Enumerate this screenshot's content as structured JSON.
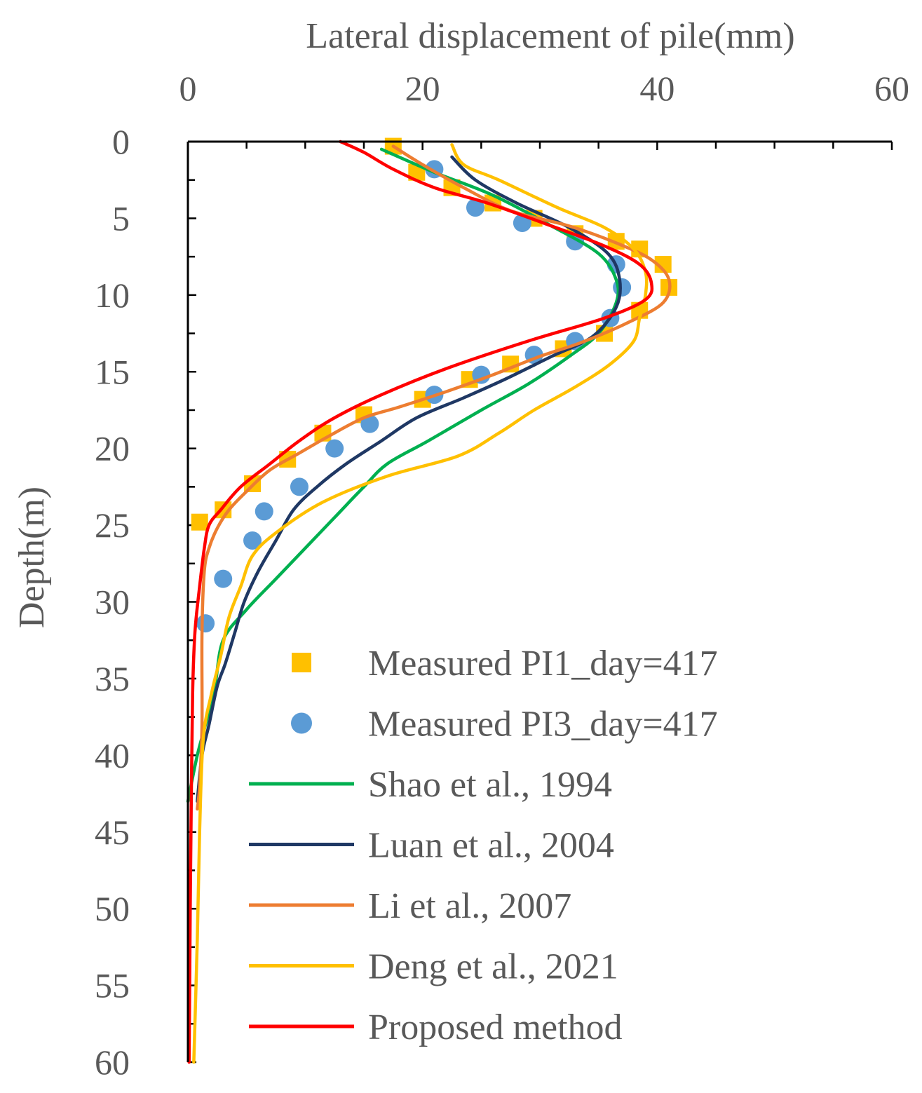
{
  "chart_data": {
    "type": "line",
    "xlabel": "Lateral displacement of pile(mm)",
    "ylabel": "Depth(m)",
    "xlim": [
      0,
      60
    ],
    "ylim": [
      0,
      60
    ],
    "x_axis_position": "top",
    "y_axis_inverted": true,
    "x_ticks": [
      0,
      20,
      40,
      60
    ],
    "y_ticks": [
      0,
      5,
      10,
      15,
      20,
      25,
      30,
      35,
      40,
      45,
      50,
      55,
      60
    ],
    "legend_position": "bottom-right",
    "grid": false,
    "series": [
      {
        "name": "Measured PI1_day=417",
        "kind": "scatter",
        "marker": "square",
        "color": "#FFC000",
        "points": [
          [
            17.5,
            0.3
          ],
          [
            19.5,
            2
          ],
          [
            22.5,
            3
          ],
          [
            26,
            4
          ],
          [
            29.5,
            5
          ],
          [
            33,
            6
          ],
          [
            36.5,
            6.5
          ],
          [
            38.5,
            7
          ],
          [
            40.5,
            8
          ],
          [
            41,
            9.5
          ],
          [
            38.5,
            11
          ],
          [
            35.5,
            12.5
          ],
          [
            32,
            13.5
          ],
          [
            27.5,
            14.5
          ],
          [
            24,
            15.5
          ],
          [
            20,
            16.8
          ],
          [
            15,
            17.8
          ],
          [
            11.5,
            19
          ],
          [
            8.5,
            20.7
          ],
          [
            5.5,
            22.3
          ],
          [
            3,
            24
          ],
          [
            1,
            24.8
          ]
        ]
      },
      {
        "name": "Measured PI3_day=417",
        "kind": "scatter",
        "marker": "circle",
        "color": "#5B9BD5",
        "points": [
          [
            21,
            1.8
          ],
          [
            24.5,
            4.3
          ],
          [
            28.5,
            5.3
          ],
          [
            33,
            6.5
          ],
          [
            36.5,
            8
          ],
          [
            37,
            9.5
          ],
          [
            36,
            11.5
          ],
          [
            33,
            13
          ],
          [
            29.5,
            13.9
          ],
          [
            25,
            15.2
          ],
          [
            21,
            16.5
          ],
          [
            15.5,
            18.4
          ],
          [
            12.5,
            20
          ],
          [
            9.5,
            22.5
          ],
          [
            6.5,
            24.1
          ],
          [
            5.5,
            26
          ],
          [
            3,
            28.5
          ],
          [
            1.5,
            31.4
          ]
        ]
      },
      {
        "name": "Shao et al., 1994",
        "kind": "line",
        "color": "#00B050",
        "points": [
          [
            16.5,
            0.5
          ],
          [
            21,
            2
          ],
          [
            26,
            3.5
          ],
          [
            31,
            5.5
          ],
          [
            35,
            7.3
          ],
          [
            36.5,
            9
          ],
          [
            36.5,
            10.5
          ],
          [
            35,
            12.5
          ],
          [
            32.5,
            14
          ],
          [
            29,
            15.8
          ],
          [
            25,
            17.5
          ],
          [
            20.5,
            19.5
          ],
          [
            17,
            21
          ],
          [
            15,
            22.5
          ],
          [
            12.5,
            24.5
          ],
          [
            10,
            26.5
          ],
          [
            7.5,
            28.5
          ],
          [
            5,
            30.5
          ],
          [
            3,
            32.5
          ],
          [
            2.3,
            35.5
          ],
          [
            1.5,
            38
          ],
          [
            0.8,
            40
          ],
          [
            0,
            43
          ]
        ]
      },
      {
        "name": "Luan et al., 2004",
        "kind": "line",
        "color": "#1F3864",
        "points": [
          [
            22.5,
            1
          ],
          [
            24.5,
            2.5
          ],
          [
            28,
            4
          ],
          [
            32.5,
            5.6
          ],
          [
            35.8,
            7.3
          ],
          [
            36.8,
            9
          ],
          [
            36.5,
            10.8
          ],
          [
            34.5,
            12.7
          ],
          [
            31,
            14
          ],
          [
            27,
            15.5
          ],
          [
            23.5,
            16.7
          ],
          [
            19.5,
            18
          ],
          [
            16.5,
            19.5
          ],
          [
            13.5,
            21
          ],
          [
            11,
            22.5
          ],
          [
            9,
            24
          ],
          [
            7.5,
            26
          ],
          [
            6,
            28
          ],
          [
            4.8,
            30
          ],
          [
            4,
            32
          ],
          [
            3.2,
            34
          ],
          [
            2.5,
            35.5
          ],
          [
            1.8,
            38
          ],
          [
            1.2,
            40
          ],
          [
            0.8,
            43
          ]
        ]
      },
      {
        "name": "Li et al., 2007",
        "kind": "line",
        "color": "#ED7D31",
        "points": [
          [
            17.5,
            0.3
          ],
          [
            20,
            1.5
          ],
          [
            23.5,
            3
          ],
          [
            27.5,
            4.5
          ],
          [
            32.5,
            5.5
          ],
          [
            36.5,
            6.6
          ],
          [
            39.5,
            7.7
          ],
          [
            41,
            9
          ],
          [
            40.5,
            10.5
          ],
          [
            37.5,
            11.8
          ],
          [
            33.5,
            13.1
          ],
          [
            30,
            14
          ],
          [
            26,
            15.2
          ],
          [
            22,
            16.3
          ],
          [
            18,
            17.3
          ],
          [
            15,
            18
          ],
          [
            12,
            19.2
          ],
          [
            9.5,
            20.3
          ],
          [
            7,
            21.4
          ],
          [
            5,
            22.8
          ],
          [
            3.5,
            24
          ],
          [
            2.5,
            25.2
          ],
          [
            1.8,
            26.5
          ],
          [
            1.4,
            28
          ],
          [
            1.2,
            32
          ],
          [
            1.2,
            38
          ],
          [
            1,
            42
          ],
          [
            0.8,
            43.5
          ]
        ]
      },
      {
        "name": "Deng et al., 2021",
        "kind": "line",
        "color": "#FFC000",
        "points": [
          [
            22.5,
            0.2
          ],
          [
            23.5,
            1.5
          ],
          [
            26.5,
            2.5
          ],
          [
            31.5,
            4.3
          ],
          [
            35.5,
            5.6
          ],
          [
            38,
            7
          ],
          [
            39,
            8.5
          ],
          [
            39,
            10
          ],
          [
            38.5,
            11.5
          ],
          [
            38,
            13
          ],
          [
            36,
            14.5
          ],
          [
            33,
            16
          ],
          [
            29.5,
            17.5
          ],
          [
            26.5,
            19
          ],
          [
            23,
            20.5
          ],
          [
            17,
            21.8
          ],
          [
            11.5,
            23.5
          ],
          [
            7.5,
            25.5
          ],
          [
            5.5,
            27
          ],
          [
            4.5,
            29
          ],
          [
            3.5,
            31
          ],
          [
            2.8,
            33.5
          ],
          [
            2,
            36
          ],
          [
            1.3,
            39
          ],
          [
            1,
            45
          ],
          [
            0.8,
            52
          ],
          [
            0.5,
            60
          ]
        ]
      },
      {
        "name": "Proposed method",
        "kind": "line",
        "color": "#FF0000",
        "points": [
          [
            13,
            0
          ],
          [
            15,
            0.7
          ],
          [
            17.5,
            1.8
          ],
          [
            21,
            3
          ],
          [
            25.5,
            4
          ],
          [
            31,
            5.5
          ],
          [
            35.5,
            6.8
          ],
          [
            38.5,
            8
          ],
          [
            39.5,
            9.2
          ],
          [
            39,
            10.3
          ],
          [
            35.5,
            11.5
          ],
          [
            29,
            13
          ],
          [
            22,
            14.8
          ],
          [
            16.5,
            16.5
          ],
          [
            12.5,
            18
          ],
          [
            9.5,
            19.5
          ],
          [
            7,
            21
          ],
          [
            4.5,
            22.5
          ],
          [
            2.8,
            24
          ],
          [
            1.8,
            25
          ],
          [
            1.4,
            26.5
          ],
          [
            1,
            29
          ],
          [
            0.6,
            32
          ],
          [
            0.4,
            36
          ],
          [
            0.3,
            42
          ],
          [
            0.2,
            50
          ],
          [
            0.1,
            60
          ]
        ]
      }
    ]
  }
}
